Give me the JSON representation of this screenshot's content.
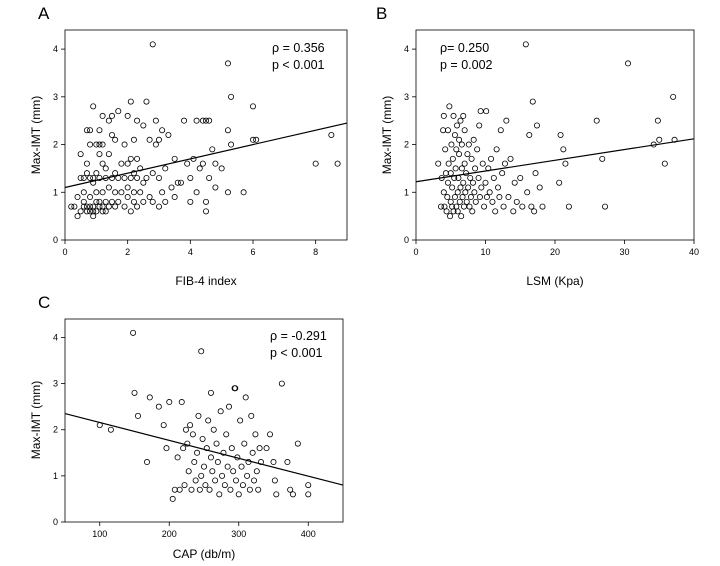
{
  "chart_data": [
    {
      "panel": "A",
      "type": "scatter",
      "xlabel": "FIB-4 index",
      "ylabel": "Max-IMT (mm)",
      "xlim": [
        0,
        9
      ],
      "ylim": [
        0,
        4.4
      ],
      "xticks": [
        0,
        2,
        4,
        6,
        8
      ],
      "yticks": [
        0,
        1,
        2,
        3,
        4
      ],
      "annotations": [
        "ρ = 0.356",
        "p < 0.001"
      ],
      "trend_line": {
        "x": [
          0,
          9
        ],
        "y": [
          1.1,
          2.45
        ]
      },
      "points": [
        [
          0.2,
          0.7
        ],
        [
          0.3,
          0.7
        ],
        [
          0.4,
          0.5
        ],
        [
          0.4,
          0.9
        ],
        [
          0.5,
          0.6
        ],
        [
          0.5,
          1.3
        ],
        [
          0.5,
          1.8
        ],
        [
          0.6,
          0.7
        ],
        [
          0.6,
          0.8
        ],
        [
          0.6,
          1.0
        ],
        [
          0.6,
          1.3
        ],
        [
          0.7,
          0.6
        ],
        [
          0.7,
          0.7
        ],
        [
          0.7,
          1.4
        ],
        [
          0.7,
          1.6
        ],
        [
          0.7,
          2.3
        ],
        [
          0.8,
          0.7
        ],
        [
          0.8,
          0.6
        ],
        [
          0.8,
          0.9
        ],
        [
          0.8,
          1.3
        ],
        [
          0.8,
          2.0
        ],
        [
          0.8,
          2.3
        ],
        [
          0.9,
          0.6
        ],
        [
          0.9,
          0.7
        ],
        [
          0.9,
          1.2
        ],
        [
          0.9,
          1.3
        ],
        [
          0.9,
          2.8
        ],
        [
          0.9,
          0.5
        ],
        [
          1.0,
          0.6
        ],
        [
          1.0,
          0.8
        ],
        [
          1.0,
          1.0
        ],
        [
          1.0,
          1.4
        ],
        [
          1.0,
          2.0
        ],
        [
          1.1,
          0.7
        ],
        [
          1.1,
          0.8
        ],
        [
          1.1,
          1.3
        ],
        [
          1.1,
          1.8
        ],
        [
          1.1,
          2.0
        ],
        [
          1.1,
          2.3
        ],
        [
          1.2,
          0.6
        ],
        [
          1.2,
          0.7
        ],
        [
          1.2,
          1.0
        ],
        [
          1.2,
          1.6
        ],
        [
          1.2,
          2.0
        ],
        [
          1.2,
          2.6
        ],
        [
          1.3,
          0.6
        ],
        [
          1.3,
          0.8
        ],
        [
          1.3,
          1.3
        ],
        [
          1.3,
          1.5
        ],
        [
          1.4,
          0.7
        ],
        [
          1.4,
          1.1
        ],
        [
          1.4,
          1.8
        ],
        [
          1.4,
          2.5
        ],
        [
          1.5,
          0.8
        ],
        [
          1.5,
          1.3
        ],
        [
          1.5,
          2.2
        ],
        [
          1.5,
          2.6
        ],
        [
          1.6,
          0.7
        ],
        [
          1.6,
          1.0
        ],
        [
          1.6,
          1.4
        ],
        [
          1.6,
          2.1
        ],
        [
          1.7,
          0.8
        ],
        [
          1.7,
          1.3
        ],
        [
          1.7,
          2.7
        ],
        [
          1.8,
          1.0
        ],
        [
          1.8,
          1.6
        ],
        [
          1.9,
          0.7
        ],
        [
          1.9,
          1.3
        ],
        [
          1.9,
          2.0
        ],
        [
          2.0,
          0.9
        ],
        [
          2.0,
          1.1
        ],
        [
          2.0,
          1.6
        ],
        [
          2.0,
          2.6
        ],
        [
          2.1,
          0.6
        ],
        [
          2.1,
          1.3
        ],
        [
          2.1,
          1.7
        ],
        [
          2.1,
          2.9
        ],
        [
          2.2,
          0.8
        ],
        [
          2.2,
          1.0
        ],
        [
          2.2,
          1.4
        ],
        [
          2.2,
          2.1
        ],
        [
          2.3,
          0.7
        ],
        [
          2.3,
          1.3
        ],
        [
          2.3,
          1.7
        ],
        [
          2.3,
          2.5
        ],
        [
          2.4,
          1.0
        ],
        [
          2.4,
          1.5
        ],
        [
          2.5,
          0.8
        ],
        [
          2.5,
          1.2
        ],
        [
          2.5,
          2.4
        ],
        [
          2.6,
          1.3
        ],
        [
          2.6,
          2.9
        ],
        [
          2.7,
          0.9
        ],
        [
          2.7,
          2.1
        ],
        [
          2.8,
          0.8
        ],
        [
          2.8,
          1.4
        ],
        [
          2.8,
          4.1
        ],
        [
          2.9,
          2.0
        ],
        [
          2.9,
          2.5
        ],
        [
          3.0,
          0.7
        ],
        [
          3.0,
          1.3
        ],
        [
          3.0,
          2.1
        ],
        [
          3.1,
          1.0
        ],
        [
          3.1,
          2.3
        ],
        [
          3.2,
          0.8
        ],
        [
          3.2,
          1.5
        ],
        [
          3.3,
          2.2
        ],
        [
          3.4,
          1.1
        ],
        [
          3.5,
          1.7
        ],
        [
          3.5,
          0.9
        ],
        [
          3.6,
          1.2
        ],
        [
          3.7,
          1.2
        ],
        [
          3.8,
          2.5
        ],
        [
          3.9,
          1.6
        ],
        [
          4.0,
          0.8
        ],
        [
          4.0,
          1.3
        ],
        [
          4.1,
          1.7
        ],
        [
          4.2,
          1.0
        ],
        [
          4.2,
          2.5
        ],
        [
          4.3,
          1.5
        ],
        [
          4.4,
          1.6
        ],
        [
          4.4,
          2.5
        ],
        [
          4.5,
          0.8
        ],
        [
          4.5,
          0.6
        ],
        [
          4.5,
          2.5
        ],
        [
          4.6,
          1.3
        ],
        [
          4.6,
          2.5
        ],
        [
          4.7,
          1.9
        ],
        [
          4.8,
          1.1
        ],
        [
          4.8,
          1.6
        ],
        [
          5.0,
          1.5
        ],
        [
          5.2,
          1.0
        ],
        [
          5.2,
          2.3
        ],
        [
          5.3,
          2.0
        ],
        [
          5.3,
          3.0
        ],
        [
          5.2,
          3.7
        ],
        [
          5.7,
          1.0
        ],
        [
          6.0,
          2.1
        ],
        [
          6.0,
          2.8
        ],
        [
          6.1,
          2.1
        ],
        [
          8.0,
          1.6
        ],
        [
          8.5,
          2.2
        ],
        [
          8.7,
          1.6
        ]
      ]
    },
    {
      "panel": "B",
      "type": "scatter",
      "xlabel": "LSM (Kpa)",
      "ylabel": "Max-IMT (mm)",
      "xlim": [
        0,
        40
      ],
      "ylim": [
        0,
        4.4
      ],
      "xticks": [
        0,
        10,
        20,
        30,
        40
      ],
      "yticks": [
        0,
        1,
        2,
        3,
        4
      ],
      "annotations": [
        "ρ= 0.250",
        "p = 0.002"
      ],
      "trend_line": {
        "x": [
          0,
          40
        ],
        "y": [
          1.22,
          2.12
        ]
      },
      "points": [
        [
          3.2,
          1.6
        ],
        [
          3.6,
          0.7
        ],
        [
          3.7,
          1.3
        ],
        [
          3.9,
          2.3
        ],
        [
          4.0,
          2.6
        ],
        [
          4.0,
          1.0
        ],
        [
          4.1,
          0.7
        ],
        [
          4.2,
          1.9
        ],
        [
          4.3,
          1.4
        ],
        [
          4.4,
          0.6
        ],
        [
          4.5,
          0.9
        ],
        [
          4.6,
          1.2
        ],
        [
          4.6,
          2.3
        ],
        [
          4.7,
          1.6
        ],
        [
          4.8,
          2.8
        ],
        [
          4.9,
          0.5
        ],
        [
          5.0,
          0.8
        ],
        [
          5.0,
          1.4
        ],
        [
          5.1,
          2.0
        ],
        [
          5.2,
          0.7
        ],
        [
          5.2,
          1.1
        ],
        [
          5.3,
          1.7
        ],
        [
          5.4,
          0.6
        ],
        [
          5.4,
          2.6
        ],
        [
          5.5,
          1.3
        ],
        [
          5.6,
          0.9
        ],
        [
          5.6,
          2.2
        ],
        [
          5.7,
          1.5
        ],
        [
          5.8,
          0.7
        ],
        [
          5.8,
          1.9
        ],
        [
          5.9,
          2.4
        ],
        [
          6.0,
          1.0
        ],
        [
          6.0,
          0.6
        ],
        [
          6.1,
          1.3
        ],
        [
          6.2,
          1.8
        ],
        [
          6.2,
          2.1
        ],
        [
          6.3,
          0.8
        ],
        [
          6.4,
          1.1
        ],
        [
          6.4,
          2.5
        ],
        [
          6.5,
          0.5
        ],
        [
          6.6,
          1.5
        ],
        [
          6.6,
          2.0
        ],
        [
          6.7,
          0.9
        ],
        [
          6.8,
          1.2
        ],
        [
          6.8,
          2.6
        ],
        [
          6.9,
          0.7
        ],
        [
          7.0,
          1.6
        ],
        [
          7.0,
          2.3
        ],
        [
          7.1,
          1.0
        ],
        [
          7.2,
          1.4
        ],
        [
          7.3,
          0.8
        ],
        [
          7.4,
          1.8
        ],
        [
          7.5,
          1.1
        ],
        [
          7.6,
          2.0
        ],
        [
          7.7,
          0.7
        ],
        [
          7.8,
          1.3
        ],
        [
          7.9,
          0.9
        ],
        [
          8.0,
          1.7
        ],
        [
          8.1,
          0.6
        ],
        [
          8.2,
          1.2
        ],
        [
          8.3,
          2.1
        ],
        [
          8.4,
          1.0
        ],
        [
          8.5,
          1.5
        ],
        [
          8.6,
          0.8
        ],
        [
          8.8,
          1.9
        ],
        [
          9.0,
          1.3
        ],
        [
          9.1,
          2.4
        ],
        [
          9.2,
          0.9
        ],
        [
          9.3,
          2.7
        ],
        [
          9.4,
          1.1
        ],
        [
          9.6,
          1.6
        ],
        [
          9.8,
          0.7
        ],
        [
          10.0,
          1.2
        ],
        [
          10.1,
          2.7
        ],
        [
          10.2,
          0.9
        ],
        [
          10.4,
          1.5
        ],
        [
          10.6,
          1.0
        ],
        [
          10.8,
          1.7
        ],
        [
          11.0,
          0.8
        ],
        [
          11.2,
          1.3
        ],
        [
          11.4,
          0.6
        ],
        [
          11.6,
          1.9
        ],
        [
          11.8,
          1.1
        ],
        [
          12.0,
          0.9
        ],
        [
          12.2,
          2.3
        ],
        [
          12.4,
          1.4
        ],
        [
          12.6,
          0.7
        ],
        [
          12.8,
          1.6
        ],
        [
          13.0,
          2.5
        ],
        [
          13.3,
          0.9
        ],
        [
          13.6,
          1.7
        ],
        [
          14.0,
          0.6
        ],
        [
          14.2,
          1.2
        ],
        [
          14.5,
          0.8
        ],
        [
          15.0,
          1.3
        ],
        [
          15.3,
          0.7
        ],
        [
          15.8,
          4.1
        ],
        [
          16.0,
          1.0
        ],
        [
          16.3,
          2.2
        ],
        [
          16.6,
          0.7
        ],
        [
          16.8,
          2.9
        ],
        [
          17.0,
          0.6
        ],
        [
          17.2,
          1.4
        ],
        [
          17.4,
          2.4
        ],
        [
          17.8,
          1.1
        ],
        [
          18.2,
          0.7
        ],
        [
          20.6,
          1.2
        ],
        [
          20.8,
          2.2
        ],
        [
          21.2,
          1.9
        ],
        [
          21.5,
          1.6
        ],
        [
          22.0,
          0.7
        ],
        [
          26.0,
          2.5
        ],
        [
          26.8,
          1.7
        ],
        [
          27.2,
          0.7
        ],
        [
          30.5,
          3.7
        ],
        [
          34.2,
          2.0
        ],
        [
          34.8,
          2.5
        ],
        [
          35.0,
          2.1
        ],
        [
          35.8,
          1.6
        ],
        [
          37.0,
          3.0
        ],
        [
          37.2,
          2.1
        ]
      ]
    },
    {
      "panel": "C",
      "type": "scatter",
      "xlabel": "CAP (db/m)",
      "ylabel": "Max-IMT (mm)",
      "xlim": [
        50,
        450
      ],
      "ylim": [
        0,
        4.4
      ],
      "xticks": [
        100,
        200,
        300,
        400
      ],
      "yticks": [
        0,
        1,
        2,
        3,
        4
      ],
      "annotations": [
        "ρ = -0.291",
        "p < 0.001"
      ],
      "trend_line": {
        "x": [
          50,
          450
        ],
        "y": [
          2.35,
          0.8
        ]
      },
      "points": [
        [
          100,
          2.1
        ],
        [
          116,
          2.0
        ],
        [
          148,
          4.1
        ],
        [
          150,
          2.8
        ],
        [
          155,
          2.3
        ],
        [
          168,
          1.3
        ],
        [
          172,
          2.7
        ],
        [
          185,
          2.5
        ],
        [
          192,
          2.1
        ],
        [
          196,
          1.6
        ],
        [
          200,
          2.6
        ],
        [
          205,
          0.5
        ],
        [
          208,
          0.7
        ],
        [
          212,
          1.4
        ],
        [
          215,
          0.7
        ],
        [
          218,
          2.6
        ],
        [
          220,
          1.6
        ],
        [
          222,
          0.8
        ],
        [
          224,
          2.0
        ],
        [
          226,
          1.7
        ],
        [
          228,
          1.1
        ],
        [
          230,
          2.1
        ],
        [
          232,
          0.7
        ],
        [
          234,
          1.9
        ],
        [
          236,
          1.3
        ],
        [
          238,
          0.9
        ],
        [
          240,
          1.5
        ],
        [
          242,
          2.3
        ],
        [
          244,
          0.7
        ],
        [
          246,
          3.7
        ],
        [
          246,
          1.0
        ],
        [
          248,
          1.8
        ],
        [
          250,
          1.2
        ],
        [
          252,
          0.8
        ],
        [
          254,
          1.6
        ],
        [
          256,
          2.2
        ],
        [
          258,
          0.7
        ],
        [
          260,
          2.8
        ],
        [
          260,
          1.4
        ],
        [
          262,
          1.1
        ],
        [
          264,
          2.0
        ],
        [
          266,
          0.9
        ],
        [
          268,
          1.7
        ],
        [
          270,
          1.3
        ],
        [
          272,
          0.6
        ],
        [
          274,
          2.4
        ],
        [
          276,
          1.0
        ],
        [
          278,
          1.5
        ],
        [
          280,
          0.8
        ],
        [
          282,
          1.9
        ],
        [
          284,
          1.2
        ],
        [
          286,
          2.5
        ],
        [
          288,
          0.7
        ],
        [
          290,
          1.6
        ],
        [
          292,
          1.1
        ],
        [
          294,
          2.9
        ],
        [
          295,
          2.9
        ],
        [
          296,
          0.9
        ],
        [
          298,
          1.4
        ],
        [
          300,
          0.6
        ],
        [
          302,
          2.2
        ],
        [
          304,
          1.2
        ],
        [
          306,
          0.8
        ],
        [
          308,
          1.7
        ],
        [
          310,
          2.7
        ],
        [
          312,
          1.0
        ],
        [
          314,
          1.3
        ],
        [
          316,
          0.7
        ],
        [
          318,
          2.3
        ],
        [
          320,
          1.5
        ],
        [
          322,
          0.9
        ],
        [
          324,
          1.9
        ],
        [
          326,
          1.1
        ],
        [
          328,
          0.7
        ],
        [
          330,
          1.6
        ],
        [
          332,
          1.3
        ],
        [
          340,
          1.6
        ],
        [
          345,
          1.9
        ],
        [
          350,
          1.3
        ],
        [
          352,
          0.9
        ],
        [
          354,
          0.6
        ],
        [
          362,
          3.0
        ],
        [
          370,
          1.3
        ],
        [
          374,
          0.7
        ],
        [
          378,
          0.6
        ],
        [
          385,
          1.7
        ],
        [
          400,
          0.8
        ],
        [
          400,
          0.6
        ]
      ]
    }
  ]
}
